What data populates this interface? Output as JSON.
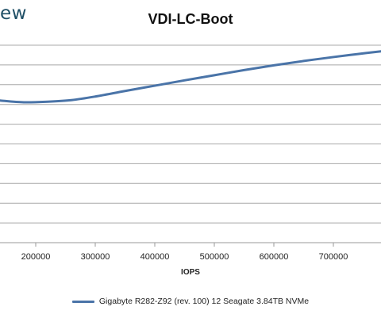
{
  "header": {
    "logo_text": "ew"
  },
  "chart_data": {
    "type": "line",
    "title": "VDI-LC-Boot",
    "xlabel": "IOPS",
    "ylabel": "",
    "x_ticks": [
      200000,
      300000,
      400000,
      500000,
      600000,
      700000
    ],
    "x_tick_labels": [
      "200000",
      "300000",
      "400000",
      "500000",
      "600000",
      "700000"
    ],
    "xlim": [
      140000,
      780000
    ],
    "grid": true,
    "legend_position": "bottom",
    "series": [
      {
        "name": "Gigabyte R282-Z92 (rev. 100) 12 Seagate 3.84TB NVMe",
        "color": "#4a74a8",
        "x": [
          140000,
          180000,
          220000,
          260000,
          300000,
          350000,
          400000,
          450000,
          500000,
          550000,
          600000,
          650000,
          700000,
          740000,
          780000
        ],
        "y": [
          0.72,
          0.711,
          0.714,
          0.722,
          0.74,
          0.768,
          0.795,
          0.822,
          0.848,
          0.874,
          0.898,
          0.92,
          0.94,
          0.955,
          0.969
        ]
      }
    ]
  }
}
